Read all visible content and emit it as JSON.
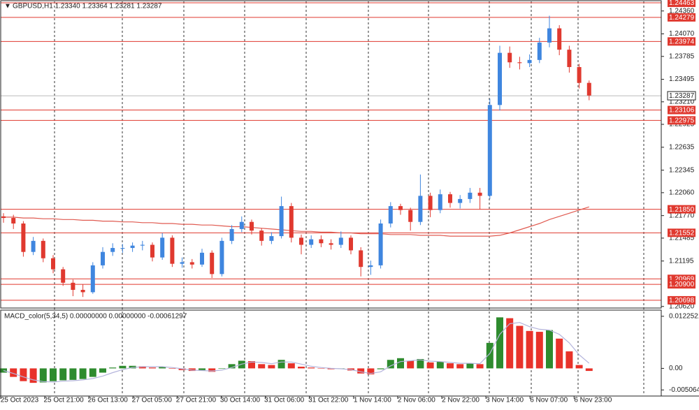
{
  "chart_data": {
    "type": "candlestick",
    "title": "GBPUSD,H1  1.23340 1.23364 1.23281 1.23287",
    "x_labels": [
      "25 Oct 2023",
      "25 Oct 21:00",
      "26 Oct 13:00",
      "27 Oct 05:00",
      "27 Oct 21:00",
      "30 Oct 14:00",
      "31 Oct 06:00",
      "31 Oct 22:00",
      "1 Nov 14:00",
      "2 Nov 06:00",
      "2 Nov 22:00",
      "3 Nov 14:00",
      "6 Nov 07:00",
      "6 Nov 23:00"
    ],
    "open": [
      1.2176,
      1.2174,
      1.2167,
      1.2131,
      1.2145,
      1.2123,
      1.2109,
      1.2092,
      1.2083,
      1.208,
      1.2114,
      1.2131,
      1.2136,
      1.2136,
      1.2139,
      1.214,
      1.2124,
      1.2149,
      1.2116,
      1.2118,
      1.2115,
      1.213,
      1.2103,
      1.2145,
      1.216,
      1.2169,
      1.2158,
      1.2145,
      1.2151,
      1.2189,
      1.2149,
      1.214,
      1.2147,
      1.2142,
      1.214,
      1.2149,
      1.2133,
      1.2112,
      1.2114,
      1.2167,
      1.2189,
      1.2184,
      1.2169,
      1.2202,
      1.2184,
      1.2204,
      1.2193,
      1.2198,
      1.2206,
      1.2202,
      1.2317,
      1.2383,
      1.2371,
      1.237,
      1.2374,
      1.2396,
      1.2414,
      1.2387,
      1.2365,
      1.2345
    ],
    "high": [
      1.218,
      1.2178,
      1.217,
      1.215,
      1.2148,
      1.2127,
      1.2112,
      1.2096,
      1.209,
      1.2118,
      1.2137,
      1.2142,
      1.2141,
      1.2143,
      1.2145,
      1.2143,
      1.2155,
      1.2152,
      1.2124,
      1.2122,
      1.2135,
      1.2133,
      1.2149,
      1.2165,
      1.2176,
      1.2172,
      1.2161,
      1.2156,
      1.2201,
      1.2193,
      1.2153,
      1.2152,
      1.2152,
      1.2147,
      1.2157,
      1.2152,
      1.2137,
      1.212,
      1.2172,
      1.2194,
      1.2192,
      1.2187,
      1.2229,
      1.2206,
      1.221,
      1.2207,
      1.2203,
      1.2212,
      1.2212,
      1.2325,
      1.2392,
      1.2391,
      1.2378,
      1.2381,
      1.2402,
      1.243,
      1.2418,
      1.2392,
      1.2369,
      1.2348
    ],
    "low": [
      1.2168,
      1.216,
      1.2125,
      1.2127,
      1.2118,
      1.2104,
      1.2088,
      1.2075,
      1.2074,
      1.2078,
      1.211,
      1.2126,
      1.213,
      1.2131,
      1.2133,
      1.2119,
      1.2121,
      1.2112,
      1.2111,
      1.211,
      1.2112,
      1.2098,
      1.21,
      1.2141,
      1.2156,
      1.2153,
      1.2139,
      1.2141,
      1.2148,
      1.2143,
      1.2128,
      1.2136,
      1.2137,
      1.2134,
      1.2136,
      1.2128,
      1.21,
      1.2102,
      1.211,
      1.2162,
      1.2178,
      1.2158,
      1.2165,
      1.2175,
      1.218,
      1.2187,
      1.2186,
      1.2193,
      1.2185,
      1.2198,
      1.231,
      1.2364,
      1.2362,
      1.2365,
      1.237,
      1.239,
      1.238,
      1.2358,
      1.2338,
      1.2323
    ],
    "close": [
      1.2174,
      1.2167,
      1.2131,
      1.2145,
      1.2123,
      1.2109,
      1.2092,
      1.2083,
      1.208,
      1.2114,
      1.2131,
      1.2136,
      1.2136,
      1.2139,
      1.214,
      1.2124,
      1.2149,
      1.2116,
      1.2118,
      1.2115,
      1.213,
      1.2103,
      1.2145,
      1.216,
      1.2169,
      1.2158,
      1.2145,
      1.2151,
      1.2189,
      1.2149,
      1.214,
      1.2147,
      1.2142,
      1.214,
      1.2149,
      1.2133,
      1.2112,
      1.2114,
      1.2167,
      1.2189,
      1.2184,
      1.2169,
      1.2202,
      1.2184,
      1.2204,
      1.2193,
      1.2198,
      1.2206,
      1.2202,
      1.2317,
      1.2383,
      1.2371,
      1.237,
      1.2374,
      1.2396,
      1.2414,
      1.2387,
      1.2365,
      1.2345,
      1.2329
    ],
    "up_color": "#3f86df",
    "down_color": "#e0392f",
    "ylim": [
      1.206,
      1.2449
    ],
    "yticks": [
      {
        "value": 1.2436,
        "label": "1.24360"
      },
      {
        "value": 1.2407,
        "label": "1.24070"
      },
      1.23785,
      1.23495,
      {
        "value": 1.2321,
        "label": "1.23210"
      },
      1.22925,
      1.22635,
      1.22345,
      {
        "value": 1.2206,
        "label": "1.22060"
      },
      {
        "value": 1.2177,
        "label": "1.21770"
      },
      1.21485,
      1.21195,
      {
        "value": 1.2062,
        "label": "1.20620"
      }
    ],
    "levels": [
      1.24463,
      1.24279,
      1.23974,
      1.23106,
      1.22975,
      {
        "value": 1.2185,
        "label": "1.21850"
      },
      1.21552,
      1.20969,
      {
        "value": 1.209,
        "label": "1.20900"
      },
      1.20698
    ],
    "level_color": "#e0392f",
    "current_price": 1.23287,
    "ma": {
      "color": "#e05a50",
      "values": [
        1.2175,
        1.2175,
        1.2174,
        1.2174,
        1.2173,
        1.2173,
        1.2172,
        1.2172,
        1.2171,
        1.2171,
        1.217,
        1.217,
        1.2169,
        1.2169,
        1.2168,
        1.2168,
        1.2167,
        1.2167,
        1.2166,
        1.2166,
        1.2165,
        1.2165,
        1.2164,
        1.2163,
        1.2163,
        1.2162,
        1.2161,
        1.216,
        1.2159,
        1.2158,
        1.2157,
        1.2157,
        1.2156,
        1.2156,
        1.2155,
        1.2155,
        1.2154,
        1.2154,
        1.2154,
        1.2153,
        1.2153,
        1.2153,
        1.2152,
        1.2152,
        1.2152,
        1.2151,
        1.2151,
        1.2151,
        1.2151,
        1.2151,
        1.2152,
        1.2155,
        1.2159,
        1.2163,
        1.2167,
        1.2172,
        1.2176,
        1.218,
        1.2184,
        1.2188
      ]
    },
    "macd": {
      "title": "MACD_color(5,34,5) 0.00000000 0.00000000 -0.00061297",
      "ylim": [
        -0.0065,
        0.0137
      ],
      "yticks": [
        0.0122521,
        {
          "value": 0,
          "label": "0.00"
        },
        -0.0050649
      ],
      "up_color": "#2e8b2e",
      "down_color": "#e8322a",
      "signal_color": "#b4b4dc",
      "histogram": [
        -0.001,
        -0.002,
        -0.003,
        -0.0034,
        -0.0033,
        -0.003,
        -0.0028,
        -0.0027,
        -0.0025,
        -0.002,
        -0.001,
        0.0002,
        0.0006,
        0.0006,
        0.0005,
        0.0002,
        0.0004,
        -0.0001,
        -0.0004,
        -0.0006,
        -0.0004,
        -0.0008,
        -0.0001,
        0.001,
        0.0018,
        0.0017,
        0.001,
        0.0008,
        0.002,
        0.0012,
        0.0004,
        0.0002,
        0.0,
        -0.0002,
        -0.0001,
        -0.0005,
        -0.0012,
        -0.0014,
        -0.0002,
        0.002,
        0.0024,
        0.0018,
        0.0022,
        0.0014,
        0.0016,
        0.0012,
        0.001,
        0.0012,
        0.001,
        0.006,
        0.012,
        0.0118,
        0.01,
        0.0088,
        0.0086,
        0.009,
        0.007,
        0.004,
        0.0008,
        -0.0006
      ],
      "signal": [
        -0.0005,
        -0.0012,
        -0.002,
        -0.0027,
        -0.0031,
        -0.0032,
        -0.003,
        -0.0029,
        -0.0027,
        -0.0024,
        -0.0018,
        -0.001,
        -0.0003,
        0.0002,
        0.0004,
        0.0004,
        0.0004,
        0.0002,
        -0.0001,
        -0.0004,
        -0.0005,
        -0.0006,
        -0.0004,
        0.0002,
        0.001,
        0.0015,
        0.0014,
        0.0011,
        0.0015,
        0.0015,
        0.001,
        0.0005,
        0.0002,
        0.0,
        -0.0001,
        -0.0003,
        -0.0008,
        -0.0012,
        -0.0008,
        0.0006,
        0.0016,
        0.0018,
        0.002,
        0.0017,
        0.0016,
        0.0014,
        0.0012,
        0.0012,
        0.0011,
        0.0035,
        0.008,
        0.0105,
        0.0108,
        0.0098,
        0.0092,
        0.009,
        0.008,
        0.006,
        0.0032,
        0.0012
      ]
    }
  }
}
